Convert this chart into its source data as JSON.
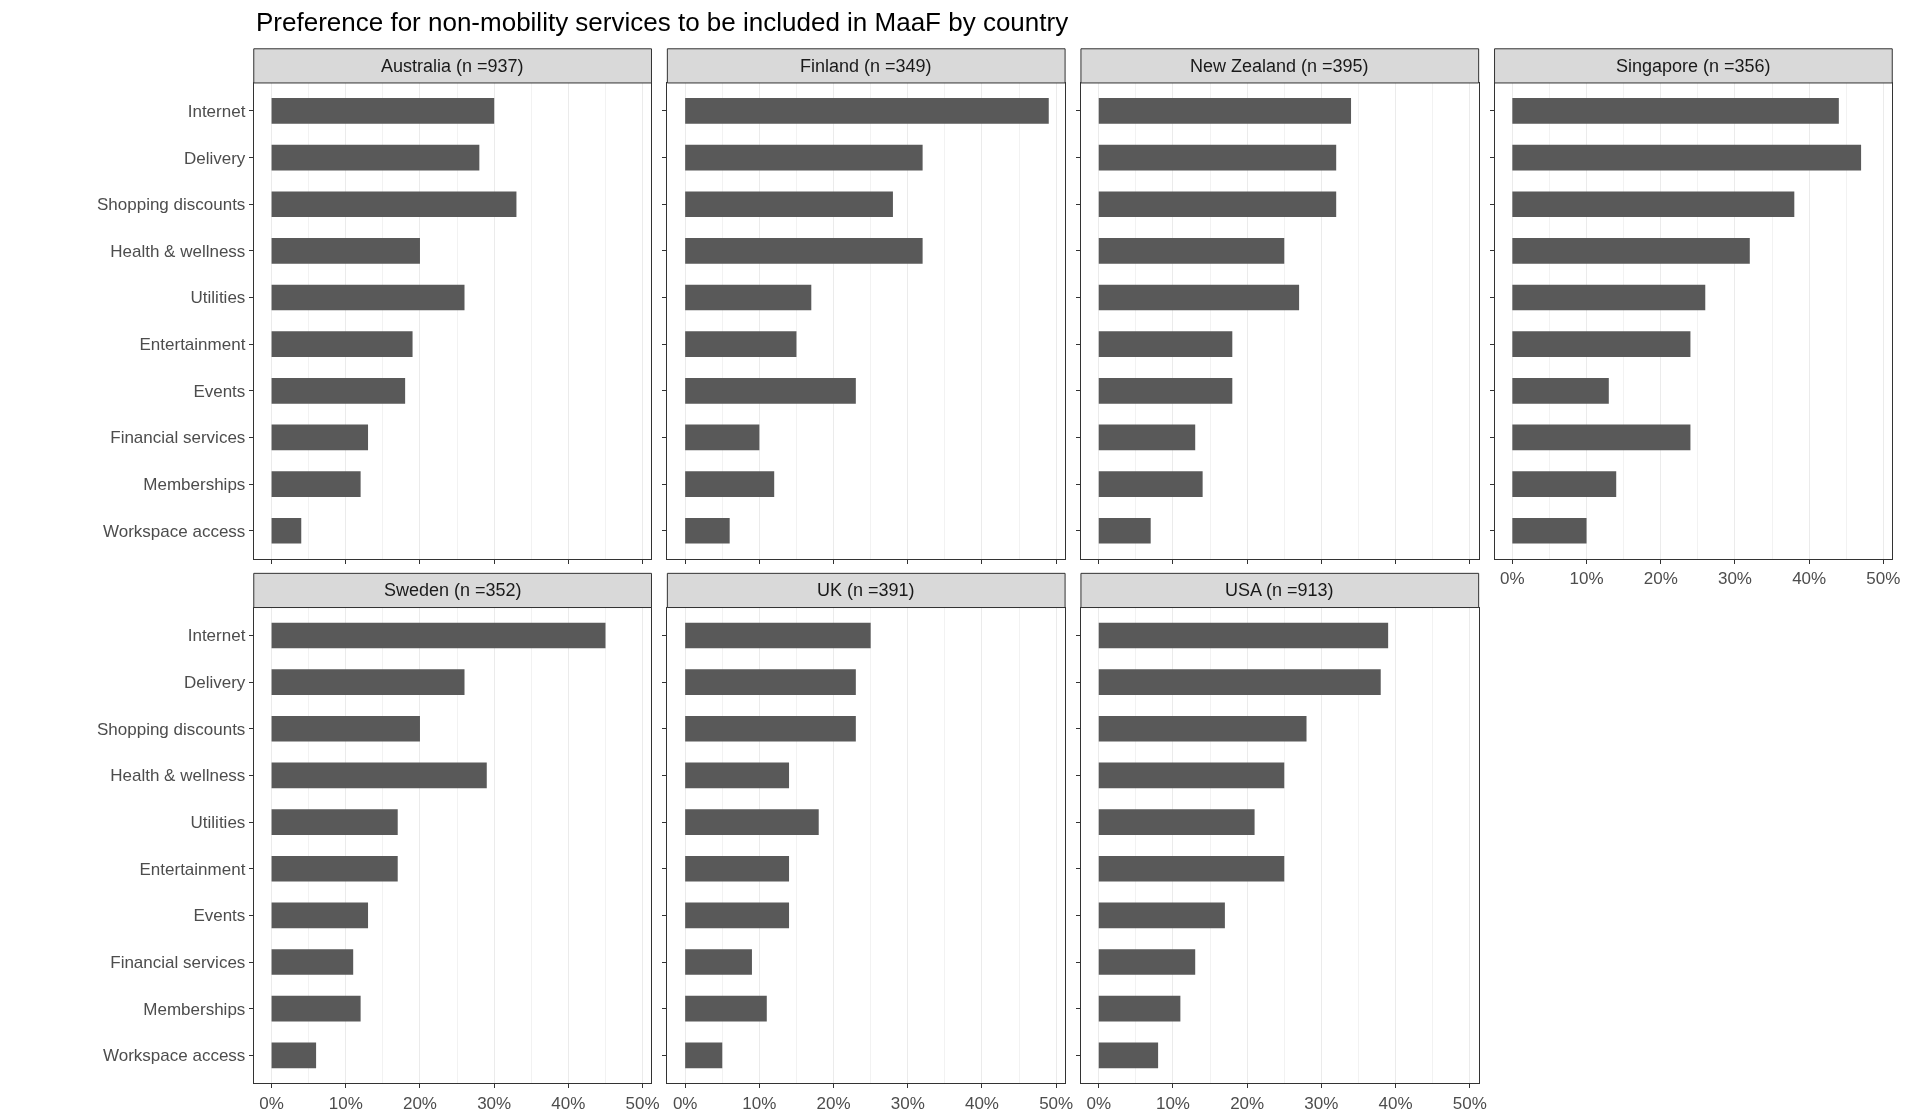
{
  "chart_data": [
    {
      "type": "bar",
      "orientation": "horizontal",
      "title": "Australia (n =937)",
      "annotations": [
        "Preference for non-mobility services to be included in MaaF by country"
      ],
      "categories": [
        "Internet",
        "Delivery",
        "Shopping discounts",
        "Health & wellness",
        "Utilities",
        "Entertainment",
        "Events",
        "Financial services",
        "Memberships",
        "Workspace access"
      ],
      "values": [
        30,
        28,
        33,
        20,
        26,
        19,
        18,
        13,
        12,
        4
      ],
      "color": "#595959",
      "xlim": [
        -2.4,
        51.2
      ],
      "xticks": [
        {
          "value": 0,
          "label": null
        },
        {
          "value": 10,
          "label": null
        },
        {
          "value": 20,
          "label": null
        },
        {
          "value": 30,
          "label": null
        },
        {
          "value": 40,
          "label": null
        },
        {
          "value": 50,
          "label": null
        }
      ],
      "grid": "x",
      "tick_labels": "y"
    },
    {
      "type": "bar",
      "orientation": "horizontal",
      "title": "Finland (n =349)",
      "categories": [
        null,
        null,
        null,
        null,
        null,
        null,
        null,
        null,
        null,
        null
      ],
      "values": [
        49,
        32,
        28,
        32,
        17,
        15,
        23,
        10,
        12,
        6
      ],
      "color": "#595959",
      "xlim": [
        -2.4,
        51.2
      ],
      "xticks": [
        {
          "value": 0,
          "label": null
        },
        {
          "value": 10,
          "label": null
        },
        {
          "value": 20,
          "label": null
        },
        {
          "value": 30,
          "label": null
        },
        {
          "value": 40,
          "label": null
        },
        {
          "value": 50,
          "label": null
        }
      ],
      "grid": "x",
      "tick_labels": false
    },
    {
      "type": "bar",
      "orientation": "horizontal",
      "title": "New Zealand (n =395)",
      "categories": [
        null,
        null,
        null,
        null,
        null,
        null,
        null,
        null,
        null,
        null
      ],
      "values": [
        34,
        32,
        32,
        25,
        27,
        18,
        18,
        13,
        14,
        7
      ],
      "color": "#595959",
      "xlim": [
        -2.4,
        51.2
      ],
      "xticks": [
        {
          "value": 0,
          "label": null
        },
        {
          "value": 10,
          "label": null
        },
        {
          "value": 20,
          "label": null
        },
        {
          "value": 30,
          "label": null
        },
        {
          "value": 40,
          "label": null
        },
        {
          "value": 50,
          "label": null
        }
      ],
      "grid": "x",
      "tick_labels": false
    },
    {
      "type": "bar",
      "orientation": "horizontal",
      "title": "Singapore (n =356)",
      "categories": [
        null,
        null,
        null,
        null,
        null,
        null,
        null,
        null,
        null,
        null
      ],
      "values": [
        44,
        47,
        38,
        32,
        26,
        24,
        13,
        24,
        14,
        10
      ],
      "color": "#595959",
      "xlim": [
        -2.4,
        51.2
      ],
      "xticks": [
        {
          "value": 0,
          "label": "0%"
        },
        {
          "value": 10,
          "label": "10%"
        },
        {
          "value": 20,
          "label": "20%"
        },
        {
          "value": 30,
          "label": "30%"
        },
        {
          "value": 40,
          "label": "40%"
        },
        {
          "value": 50,
          "label": "50%"
        }
      ],
      "grid": "x",
      "tick_labels": "x"
    },
    {
      "type": "bar",
      "orientation": "horizontal",
      "title": "Sweden (n =352)",
      "categories": [
        "Internet",
        "Delivery",
        "Shopping discounts",
        "Health & wellness",
        "Utilities",
        "Entertainment",
        "Events",
        "Financial services",
        "Memberships",
        "Workspace access"
      ],
      "values": [
        45,
        26,
        20,
        29,
        17,
        17,
        13,
        11,
        12,
        6
      ],
      "color": "#595959",
      "xlim": [
        -2.4,
        51.2
      ],
      "xticks": [
        {
          "value": 0,
          "label": "0%"
        },
        {
          "value": 10,
          "label": "10%"
        },
        {
          "value": 20,
          "label": "20%"
        },
        {
          "value": 30,
          "label": "30%"
        },
        {
          "value": 40,
          "label": "40%"
        },
        {
          "value": 50,
          "label": "50%"
        }
      ],
      "grid": "x"
    },
    {
      "type": "bar",
      "orientation": "horizontal",
      "title": "UK (n =391)",
      "categories": [
        null,
        null,
        null,
        null,
        null,
        null,
        null,
        null,
        null,
        null
      ],
      "values": [
        25,
        23,
        23,
        14,
        18,
        14,
        14,
        9,
        11,
        5
      ],
      "color": "#595959",
      "xlim": [
        -2.4,
        51.2
      ],
      "xticks": [
        {
          "value": 0,
          "label": "0%"
        },
        {
          "value": 10,
          "label": "10%"
        },
        {
          "value": 20,
          "label": "20%"
        },
        {
          "value": 30,
          "label": "30%"
        },
        {
          "value": 40,
          "label": "40%"
        },
        {
          "value": 50,
          "label": "50%"
        }
      ],
      "grid": "x",
      "tick_labels": "x"
    },
    {
      "type": "bar",
      "orientation": "horizontal",
      "title": "USA (n =913)",
      "categories": [
        null,
        null,
        null,
        null,
        null,
        null,
        null,
        null,
        null,
        null
      ],
      "values": [
        39,
        38,
        28,
        25,
        21,
        25,
        17,
        13,
        11,
        8
      ],
      "color": "#595959",
      "xlim": [
        -2.4,
        51.2
      ],
      "xticks": [
        {
          "value": 0,
          "label": "0%"
        },
        {
          "value": 10,
          "label": "10%"
        },
        {
          "value": 20,
          "label": "20%"
        },
        {
          "value": 30,
          "label": "30%"
        },
        {
          "value": 40,
          "label": "40%"
        },
        {
          "value": 50,
          "label": "50%"
        }
      ],
      "grid": "x",
      "tick_labels": "x"
    }
  ]
}
